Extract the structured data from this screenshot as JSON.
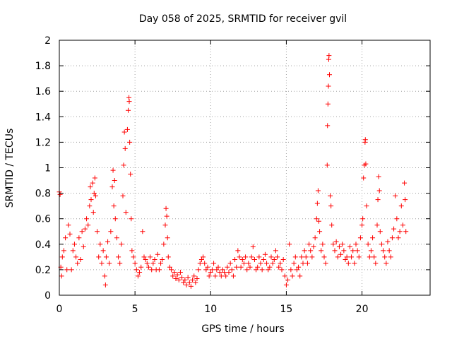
{
  "chart_data": {
    "type": "scatter",
    "title": "Day 058 of 2025, SRMTID for receiver gvil",
    "xlabel": "GPS time / hours",
    "ylabel": "SRMTID / TECUs",
    "xlim": [
      0,
      24.5
    ],
    "ylim": [
      0,
      2
    ],
    "x_ticks": [
      0,
      5,
      10,
      15,
      20
    ],
    "x_tick_labels": [
      "0",
      "5",
      "10",
      "15",
      "20"
    ],
    "y_ticks": [
      0,
      0.2,
      0.4,
      0.6,
      0.8,
      1,
      1.2,
      1.4,
      1.6,
      1.8,
      2
    ],
    "y_tick_labels": [
      "0",
      "0.2",
      "0.4",
      "0.6",
      "0.8",
      "1",
      "1.2",
      "1.4",
      "1.6",
      "1.8",
      "2"
    ],
    "grid": true,
    "marker": "+",
    "color": "#ff0000",
    "series": [
      {
        "name": "SRMTID",
        "points": [
          [
            0.0,
            0.81
          ],
          [
            0.05,
            0.79
          ],
          [
            0.1,
            0.22
          ],
          [
            0.15,
            0.15
          ],
          [
            0.2,
            0.3
          ],
          [
            0.3,
            0.35
          ],
          [
            0.4,
            0.45
          ],
          [
            0.5,
            0.2
          ],
          [
            0.6,
            0.55
          ],
          [
            0.7,
            0.48
          ],
          [
            0.8,
            0.2
          ],
          [
            0.9,
            0.35
          ],
          [
            1.0,
            0.4
          ],
          [
            1.1,
            0.3
          ],
          [
            1.2,
            0.25
          ],
          [
            1.3,
            0.45
          ],
          [
            1.4,
            0.28
          ],
          [
            1.5,
            0.5
          ],
          [
            1.6,
            0.38
          ],
          [
            1.7,
            0.52
          ],
          [
            1.8,
            0.6
          ],
          [
            1.9,
            0.55
          ],
          [
            2.0,
            0.7
          ],
          [
            2.05,
            0.85
          ],
          [
            2.1,
            0.75
          ],
          [
            2.2,
            0.88
          ],
          [
            2.25,
            0.65
          ],
          [
            2.3,
            0.8
          ],
          [
            2.35,
            0.92
          ],
          [
            2.4,
            0.78
          ],
          [
            2.5,
            0.5
          ],
          [
            2.6,
            0.3
          ],
          [
            2.7,
            0.4
          ],
          [
            2.8,
            0.25
          ],
          [
            2.9,
            0.35
          ],
          [
            3.0,
            0.15
          ],
          [
            3.05,
            0.08
          ],
          [
            3.1,
            0.3
          ],
          [
            3.2,
            0.42
          ],
          [
            3.3,
            0.25
          ],
          [
            3.4,
            0.5
          ],
          [
            3.5,
            0.85
          ],
          [
            3.55,
            0.98
          ],
          [
            3.6,
            0.7
          ],
          [
            3.65,
            0.9
          ],
          [
            3.7,
            0.6
          ],
          [
            3.8,
            0.45
          ],
          [
            3.9,
            0.3
          ],
          [
            4.0,
            0.25
          ],
          [
            4.1,
            0.4
          ],
          [
            4.2,
            0.78
          ],
          [
            4.25,
            1.02
          ],
          [
            4.3,
            1.28
          ],
          [
            4.35,
            1.15
          ],
          [
            4.4,
            0.65
          ],
          [
            4.5,
            1.3
          ],
          [
            4.55,
            1.45
          ],
          [
            4.6,
            1.55
          ],
          [
            4.62,
            1.52
          ],
          [
            4.65,
            1.2
          ],
          [
            4.7,
            0.95
          ],
          [
            4.75,
            0.6
          ],
          [
            4.8,
            0.35
          ],
          [
            4.9,
            0.3
          ],
          [
            5.0,
            0.25
          ],
          [
            5.1,
            0.2
          ],
          [
            5.2,
            0.15
          ],
          [
            5.3,
            0.18
          ],
          [
            5.4,
            0.22
          ],
          [
            5.5,
            0.5
          ],
          [
            5.6,
            0.3
          ],
          [
            5.7,
            0.28
          ],
          [
            5.8,
            0.25
          ],
          [
            5.9,
            0.22
          ],
          [
            6.0,
            0.3
          ],
          [
            6.1,
            0.2
          ],
          [
            6.2,
            0.25
          ],
          [
            6.3,
            0.28
          ],
          [
            6.4,
            0.2
          ],
          [
            6.5,
            0.32
          ],
          [
            6.6,
            0.2
          ],
          [
            6.7,
            0.25
          ],
          [
            6.8,
            0.28
          ],
          [
            6.9,
            0.4
          ],
          [
            7.0,
            0.55
          ],
          [
            7.05,
            0.68
          ],
          [
            7.1,
            0.62
          ],
          [
            7.15,
            0.45
          ],
          [
            7.2,
            0.3
          ],
          [
            7.3,
            0.22
          ],
          [
            7.4,
            0.2
          ],
          [
            7.5,
            0.15
          ],
          [
            7.6,
            0.18
          ],
          [
            7.7,
            0.13
          ],
          [
            7.8,
            0.16
          ],
          [
            7.9,
            0.12
          ],
          [
            8.0,
            0.18
          ],
          [
            8.1,
            0.14
          ],
          [
            8.2,
            0.1
          ],
          [
            8.3,
            0.12
          ],
          [
            8.4,
            0.08
          ],
          [
            8.5,
            0.14
          ],
          [
            8.6,
            0.1
          ],
          [
            8.7,
            0.07
          ],
          [
            8.8,
            0.12
          ],
          [
            8.9,
            0.15
          ],
          [
            9.0,
            0.1
          ],
          [
            9.1,
            0.13
          ],
          [
            9.2,
            0.2
          ],
          [
            9.3,
            0.25
          ],
          [
            9.4,
            0.28
          ],
          [
            9.5,
            0.3
          ],
          [
            9.6,
            0.25
          ],
          [
            9.7,
            0.2
          ],
          [
            9.8,
            0.22
          ],
          [
            9.9,
            0.15
          ],
          [
            10.0,
            0.18
          ],
          [
            10.1,
            0.2
          ],
          [
            10.2,
            0.25
          ],
          [
            10.3,
            0.15
          ],
          [
            10.4,
            0.2
          ],
          [
            10.5,
            0.22
          ],
          [
            10.6,
            0.18
          ],
          [
            10.7,
            0.15
          ],
          [
            10.8,
            0.2
          ],
          [
            10.9,
            0.18
          ],
          [
            11.0,
            0.15
          ],
          [
            11.1,
            0.22
          ],
          [
            11.2,
            0.18
          ],
          [
            11.3,
            0.25
          ],
          [
            11.4,
            0.2
          ],
          [
            11.5,
            0.15
          ],
          [
            11.6,
            0.28
          ],
          [
            11.7,
            0.22
          ],
          [
            11.8,
            0.35
          ],
          [
            11.9,
            0.3
          ],
          [
            12.0,
            0.22
          ],
          [
            12.1,
            0.28
          ],
          [
            12.2,
            0.25
          ],
          [
            12.3,
            0.3
          ],
          [
            12.4,
            0.2
          ],
          [
            12.5,
            0.25
          ],
          [
            12.6,
            0.22
          ],
          [
            12.7,
            0.3
          ],
          [
            12.8,
            0.38
          ],
          [
            12.9,
            0.28
          ],
          [
            13.0,
            0.2
          ],
          [
            13.1,
            0.22
          ],
          [
            13.2,
            0.3
          ],
          [
            13.3,
            0.25
          ],
          [
            13.4,
            0.2
          ],
          [
            13.5,
            0.28
          ],
          [
            13.6,
            0.32
          ],
          [
            13.7,
            0.25
          ],
          [
            13.8,
            0.2
          ],
          [
            13.9,
            0.22
          ],
          [
            14.0,
            0.3
          ],
          [
            14.1,
            0.25
          ],
          [
            14.2,
            0.28
          ],
          [
            14.3,
            0.35
          ],
          [
            14.4,
            0.3
          ],
          [
            14.5,
            0.22
          ],
          [
            14.6,
            0.25
          ],
          [
            14.7,
            0.2
          ],
          [
            14.8,
            0.28
          ],
          [
            14.9,
            0.15
          ],
          [
            15.0,
            0.08
          ],
          [
            15.1,
            0.12
          ],
          [
            15.2,
            0.4
          ],
          [
            15.3,
            0.2
          ],
          [
            15.4,
            0.15
          ],
          [
            15.5,
            0.25
          ],
          [
            15.6,
            0.3
          ],
          [
            15.7,
            0.2
          ],
          [
            15.8,
            0.22
          ],
          [
            15.9,
            0.15
          ],
          [
            16.0,
            0.3
          ],
          [
            16.1,
            0.25
          ],
          [
            16.2,
            0.35
          ],
          [
            16.3,
            0.3
          ],
          [
            16.4,
            0.25
          ],
          [
            16.5,
            0.4
          ],
          [
            16.6,
            0.35
          ],
          [
            16.7,
            0.3
          ],
          [
            16.8,
            0.38
          ],
          [
            16.9,
            0.45
          ],
          [
            17.0,
            0.6
          ],
          [
            17.05,
            0.72
          ],
          [
            17.1,
            0.82
          ],
          [
            17.15,
            0.58
          ],
          [
            17.2,
            0.5
          ],
          [
            17.3,
            0.35
          ],
          [
            17.4,
            0.4
          ],
          [
            17.5,
            0.3
          ],
          [
            17.6,
            0.25
          ],
          [
            17.7,
            1.02
          ],
          [
            17.72,
            1.33
          ],
          [
            17.75,
            1.5
          ],
          [
            17.78,
            1.64
          ],
          [
            17.8,
            1.85
          ],
          [
            17.82,
            1.88
          ],
          [
            17.85,
            1.73
          ],
          [
            17.9,
            0.78
          ],
          [
            17.95,
            0.7
          ],
          [
            18.0,
            0.55
          ],
          [
            18.1,
            0.4
          ],
          [
            18.2,
            0.35
          ],
          [
            18.3,
            0.42
          ],
          [
            18.4,
            0.3
          ],
          [
            18.5,
            0.38
          ],
          [
            18.6,
            0.32
          ],
          [
            18.7,
            0.4
          ],
          [
            18.8,
            0.35
          ],
          [
            18.9,
            0.28
          ],
          [
            19.0,
            0.3
          ],
          [
            19.1,
            0.25
          ],
          [
            19.2,
            0.38
          ],
          [
            19.3,
            0.3
          ],
          [
            19.4,
            0.35
          ],
          [
            19.5,
            0.25
          ],
          [
            19.6,
            0.4
          ],
          [
            19.7,
            0.35
          ],
          [
            19.8,
            0.3
          ],
          [
            19.9,
            0.45
          ],
          [
            20.0,
            0.55
          ],
          [
            20.05,
            0.6
          ],
          [
            20.1,
            0.92
          ],
          [
            20.15,
            1.02
          ],
          [
            20.2,
            1.2
          ],
          [
            20.22,
            1.22
          ],
          [
            20.25,
            1.03
          ],
          [
            20.3,
            0.7
          ],
          [
            20.4,
            0.4
          ],
          [
            20.5,
            0.3
          ],
          [
            20.6,
            0.35
          ],
          [
            20.7,
            0.45
          ],
          [
            20.8,
            0.3
          ],
          [
            20.9,
            0.25
          ],
          [
            21.0,
            0.55
          ],
          [
            21.05,
            0.75
          ],
          [
            21.1,
            0.93
          ],
          [
            21.15,
            0.82
          ],
          [
            21.2,
            0.5
          ],
          [
            21.3,
            0.4
          ],
          [
            21.4,
            0.35
          ],
          [
            21.5,
            0.3
          ],
          [
            21.6,
            0.25
          ],
          [
            21.7,
            0.42
          ],
          [
            21.8,
            0.35
          ],
          [
            21.9,
            0.3
          ],
          [
            22.0,
            0.45
          ],
          [
            22.1,
            0.52
          ],
          [
            22.2,
            0.78
          ],
          [
            22.3,
            0.6
          ],
          [
            22.4,
            0.45
          ],
          [
            22.5,
            0.5
          ],
          [
            22.6,
            0.7
          ],
          [
            22.7,
            0.55
          ],
          [
            22.8,
            0.88
          ],
          [
            22.85,
            0.75
          ],
          [
            22.9,
            0.5
          ]
        ]
      }
    ]
  }
}
